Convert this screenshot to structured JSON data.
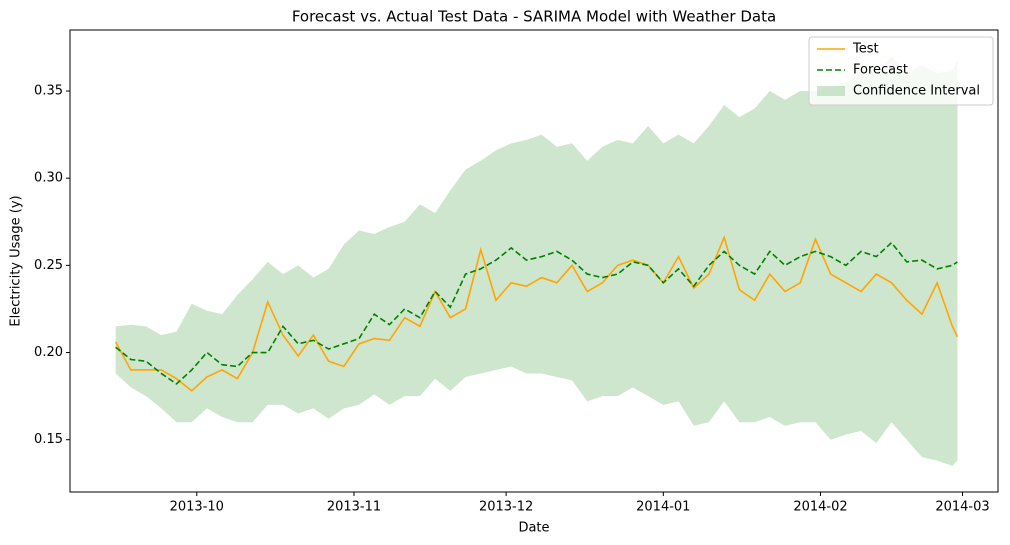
{
  "chart_data": {
    "type": "line",
    "title": "Forecast vs. Actual Test Data - SARIMA Model with Weather Data",
    "xlabel": "Date",
    "ylabel": "Electricity Usage (y)",
    "x": [
      "2013-09-15",
      "2013-09-18",
      "2013-09-21",
      "2013-09-24",
      "2013-09-27",
      "2013-09-30",
      "2013-10-03",
      "2013-10-06",
      "2013-10-09",
      "2013-10-12",
      "2013-10-15",
      "2013-10-18",
      "2013-10-21",
      "2013-10-24",
      "2013-10-27",
      "2013-10-30",
      "2013-11-02",
      "2013-11-05",
      "2013-11-08",
      "2013-11-11",
      "2013-11-14",
      "2013-11-17",
      "2013-11-20",
      "2013-11-23",
      "2013-11-26",
      "2013-11-29",
      "2013-12-02",
      "2013-12-05",
      "2013-12-08",
      "2013-12-11",
      "2013-12-14",
      "2013-12-17",
      "2013-12-20",
      "2013-12-23",
      "2013-12-26",
      "2013-12-29",
      "2014-01-01",
      "2014-01-04",
      "2014-01-07",
      "2014-01-10",
      "2014-01-13",
      "2014-01-16",
      "2014-01-19",
      "2014-01-22",
      "2014-01-25",
      "2014-01-28",
      "2014-01-31",
      "2014-02-03",
      "2014-02-06",
      "2014-02-09",
      "2014-02-12",
      "2014-02-15",
      "2014-02-18",
      "2014-02-21",
      "2014-02-24",
      "2014-02-27",
      "2014-02-28"
    ],
    "series": [
      {
        "name": "Test",
        "color": "#ffa500",
        "style": "solid",
        "values": [
          0.206,
          0.19,
          0.19,
          0.19,
          0.185,
          0.178,
          0.186,
          0.19,
          0.185,
          0.2,
          0.229,
          0.21,
          0.198,
          0.21,
          0.195,
          0.192,
          0.205,
          0.208,
          0.207,
          0.22,
          0.215,
          0.235,
          0.22,
          0.225,
          0.259,
          0.23,
          0.24,
          0.238,
          0.243,
          0.24,
          0.25,
          0.235,
          0.24,
          0.25,
          0.253,
          0.25,
          0.24,
          0.255,
          0.237,
          0.245,
          0.266,
          0.236,
          0.23,
          0.245,
          0.235,
          0.24,
          0.265,
          0.245,
          0.24,
          0.235,
          0.245,
          0.24,
          0.23,
          0.222,
          0.24,
          0.215,
          0.209
        ]
      },
      {
        "name": "Forecast",
        "color": "#008000",
        "style": "dashed",
        "values": [
          0.203,
          0.196,
          0.195,
          0.188,
          0.182,
          0.19,
          0.2,
          0.193,
          0.192,
          0.2,
          0.2,
          0.215,
          0.205,
          0.207,
          0.202,
          0.205,
          0.208,
          0.222,
          0.216,
          0.225,
          0.22,
          0.235,
          0.226,
          0.245,
          0.248,
          0.253,
          0.26,
          0.253,
          0.255,
          0.258,
          0.253,
          0.245,
          0.243,
          0.245,
          0.252,
          0.25,
          0.24,
          0.248,
          0.238,
          0.25,
          0.258,
          0.25,
          0.245,
          0.258,
          0.25,
          0.255,
          0.258,
          0.255,
          0.25,
          0.258,
          0.255,
          0.263,
          0.252,
          0.253,
          0.248,
          0.25,
          0.252
        ]
      },
      {
        "name": "Confidence Interval",
        "color": "#a5d2a5",
        "upper": [
          0.215,
          0.216,
          0.215,
          0.21,
          0.212,
          0.228,
          0.224,
          0.222,
          0.233,
          0.242,
          0.252,
          0.245,
          0.25,
          0.243,
          0.248,
          0.262,
          0.27,
          0.268,
          0.272,
          0.275,
          0.285,
          0.28,
          0.293,
          0.305,
          0.31,
          0.316,
          0.32,
          0.322,
          0.325,
          0.318,
          0.32,
          0.31,
          0.318,
          0.322,
          0.32,
          0.33,
          0.32,
          0.325,
          0.32,
          0.33,
          0.342,
          0.335,
          0.34,
          0.35,
          0.345,
          0.35,
          0.35,
          0.352,
          0.355,
          0.36,
          0.36,
          0.37,
          0.36,
          0.365,
          0.36,
          0.362,
          0.368
        ],
        "lower": [
          0.188,
          0.18,
          0.175,
          0.168,
          0.16,
          0.16,
          0.168,
          0.163,
          0.16,
          0.16,
          0.17,
          0.17,
          0.165,
          0.168,
          0.162,
          0.168,
          0.17,
          0.176,
          0.17,
          0.175,
          0.175,
          0.185,
          0.178,
          0.186,
          0.188,
          0.19,
          0.192,
          0.188,
          0.188,
          0.186,
          0.184,
          0.172,
          0.175,
          0.175,
          0.18,
          0.175,
          0.17,
          0.172,
          0.158,
          0.16,
          0.172,
          0.16,
          0.16,
          0.163,
          0.158,
          0.16,
          0.16,
          0.15,
          0.153,
          0.155,
          0.148,
          0.16,
          0.15,
          0.14,
          0.138,
          0.135,
          0.138
        ]
      }
    ],
    "xlim": [
      "2013-09-06",
      "2014-03-08"
    ],
    "xticks": [
      {
        "value": "2013-10-01",
        "label": "2013-10"
      },
      {
        "value": "2013-11-01",
        "label": "2013-11"
      },
      {
        "value": "2013-12-01",
        "label": "2013-12"
      },
      {
        "value": "2014-01-01",
        "label": "2014-01"
      },
      {
        "value": "2014-02-01",
        "label": "2014-02"
      },
      {
        "value": "2014-03-01",
        "label": "2014-03"
      }
    ],
    "ylim": [
      0.12,
      0.385
    ],
    "yticks": [
      0.15,
      {
        "value": 0.2,
        "label": "0.20"
      },
      0.25,
      {
        "value": 0.3,
        "label": "0.30"
      },
      0.35
    ],
    "grid": false,
    "legend": "upper right"
  }
}
